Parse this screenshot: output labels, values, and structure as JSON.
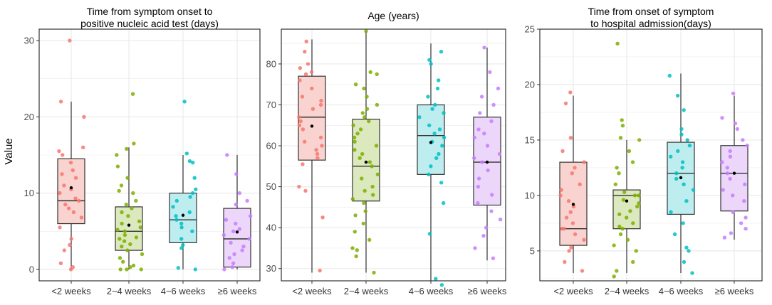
{
  "ylabel": "Value",
  "colors": {
    "groups": [
      "#F8766D",
      "#7CAE00",
      "#00BFC4",
      "#C77CFF"
    ],
    "fills": [
      "#F9D3CF",
      "#DCE9BE",
      "#BDEDEF",
      "#ECD7FB"
    ],
    "panel_border": "#333333",
    "grid": "#EBEBEB",
    "box_line": "#333333",
    "mean": "#000000"
  },
  "chart_data": [
    {
      "type": "box",
      "title": [
        "Time from symptom onset to",
        "positive nucleic acid test (days)"
      ],
      "categories": [
        "<2 weeks",
        "2~4 weeks",
        "4~6 weeks",
        "≥6 weeks"
      ],
      "ylim": [
        -1.5,
        31.5
      ],
      "yticks": [
        0,
        10,
        20,
        30
      ],
      "boxes": [
        {
          "min": 0,
          "q1": 6,
          "median": 9,
          "q3": 14.5,
          "max": 22,
          "mean": 10.7
        },
        {
          "min": 0,
          "q1": 2.5,
          "median": 5,
          "q3": 8.2,
          "max": 16,
          "mean": 5.8
        },
        {
          "min": 0,
          "q1": 3.5,
          "median": 6.5,
          "q3": 10,
          "max": 15,
          "mean": 7.1
        },
        {
          "min": 0,
          "q1": 0.3,
          "median": 4,
          "q3": 8,
          "max": 15,
          "mean": 4.9
        }
      ],
      "points": [
        [
          0,
          0.3,
          0.8,
          2.5,
          3.2,
          4,
          5.5,
          6.8,
          7.5,
          8,
          8.5,
          9,
          9.3,
          10,
          10.5,
          11,
          12,
          12.5,
          13,
          14,
          15,
          15.5,
          16,
          20,
          22,
          30
        ],
        [
          0,
          0,
          0,
          0.3,
          0.5,
          1,
          1.5,
          2,
          2.5,
          3,
          3.3,
          3.7,
          4,
          4.2,
          4.5,
          5,
          5.2,
          5.5,
          6,
          6.3,
          7,
          7.5,
          8,
          8.5,
          9,
          10,
          10.3,
          11,
          12,
          13.5,
          15,
          15.8,
          16.5,
          23
        ],
        [
          0,
          0.2,
          2.8,
          3.2,
          4,
          5,
          5.5,
          6,
          6.5,
          7,
          7.5,
          8.2,
          9,
          9.5,
          10,
          10.5,
          12,
          14,
          14.2,
          15.2,
          22
        ],
        [
          0,
          0.3,
          0.8,
          1.5,
          2,
          2.5,
          3,
          3.5,
          4,
          4.5,
          5,
          5.3,
          6,
          6.5,
          7,
          8.5,
          9,
          10,
          12.5,
          15
        ]
      ]
    },
    {
      "type": "box",
      "title": [
        "Age (years)"
      ],
      "categories": [
        "<2 weeks",
        "2~4 weeks",
        "4~6 weeks",
        "≥6 weeks"
      ],
      "ylim": [
        27,
        88.5
      ],
      "yticks": [
        30,
        40,
        50,
        60,
        70,
        80
      ],
      "boxes": [
        {
          "min": 29,
          "q1": 56.5,
          "median": 67,
          "q3": 77,
          "max": 86,
          "mean": 64.8
        },
        {
          "min": 29,
          "q1": 46.5,
          "median": 55,
          "q3": 66.5,
          "max": 88,
          "mean": 56
        },
        {
          "min": 27,
          "q1": 53,
          "median": 62.5,
          "q3": 70,
          "max": 85,
          "mean": 60.8
        },
        {
          "min": 32,
          "q1": 45.5,
          "median": 56,
          "q3": 67,
          "max": 84,
          "mean": 56
        }
      ],
      "points": [
        [
          29.5,
          42.5,
          49,
          50,
          55.5,
          57,
          58,
          59,
          60,
          61,
          62,
          64,
          65,
          66,
          67,
          69,
          70,
          71,
          72,
          74,
          76,
          77.5,
          78,
          79,
          80,
          83,
          85.5
        ],
        [
          29,
          33,
          34.5,
          35,
          37,
          39,
          41,
          43,
          44,
          46,
          47,
          48,
          49,
          50,
          52,
          53,
          55,
          56,
          57,
          58,
          59,
          60,
          61,
          62,
          63,
          64,
          65,
          66,
          67,
          68,
          69,
          70,
          72,
          74,
          75,
          77.5,
          78,
          88
        ],
        [
          26,
          27.5,
          38.5,
          46,
          51,
          53,
          55,
          57,
          58,
          60,
          61,
          62,
          63,
          64,
          65,
          67,
          68,
          69,
          70,
          72,
          74,
          76,
          80,
          81,
          83
        ],
        [
          32.5,
          35,
          38,
          40,
          42,
          44,
          46,
          48,
          50,
          52,
          54,
          56,
          57,
          58,
          60,
          62,
          63,
          64,
          66,
          68,
          70,
          72,
          74,
          78,
          84
        ]
      ]
    },
    {
      "type": "box",
      "title": [
        "Time from onset of symptom",
        " to hospital admission(days)"
      ],
      "categories": [
        "<2 weeks",
        "2~4 weeks",
        "4~6 weeks",
        "≥6 weeks"
      ],
      "ylim": [
        2.3,
        25
      ],
      "yticks": [
        5,
        10,
        15,
        20,
        25
      ],
      "boxes": [
        {
          "min": 3,
          "q1": 5.5,
          "median": 7,
          "q3": 13,
          "max": 19,
          "mean": 9.2
        },
        {
          "min": 3,
          "q1": 7,
          "median": 10,
          "q3": 10.5,
          "max": 15,
          "mean": 9.5
        },
        {
          "min": 3,
          "q1": 8.3,
          "median": 12,
          "q3": 14.8,
          "max": 21,
          "mean": 11.6
        },
        {
          "min": 6,
          "q1": 8.6,
          "median": 12,
          "q3": 14.5,
          "max": 19,
          "mean": 12
        }
      ],
      "points": [
        [
          3.2,
          4,
          5,
          5.3,
          6,
          6.5,
          7,
          7,
          7.5,
          8,
          8.5,
          9,
          9.5,
          10,
          10.5,
          11,
          12,
          12.5,
          13,
          14,
          15.2,
          18.3,
          19.3
        ],
        [
          2.7,
          3.2,
          4,
          5,
          5.5,
          6,
          6.5,
          7,
          7.2,
          7.5,
          8,
          8.3,
          8.6,
          9,
          9.3,
          9.6,
          10,
          10,
          10.3,
          11,
          12,
          12.5,
          13,
          14,
          15,
          15.2,
          16.3,
          16.8,
          23.7
        ],
        [
          3,
          4,
          5,
          5.3,
          6.5,
          7.5,
          8.5,
          9.5,
          10.5,
          11,
          11.5,
          12,
          12.5,
          13,
          13.5,
          14,
          14.5,
          15,
          15.5,
          16,
          17.7,
          19,
          20.8
        ],
        [
          6.2,
          6.6,
          7,
          7.5,
          8,
          8.5,
          9.5,
          10,
          10.5,
          11,
          11.5,
          12,
          12.5,
          13,
          13.5,
          14,
          14.5,
          15,
          16,
          16.5,
          17,
          19.2
        ]
      ]
    }
  ]
}
